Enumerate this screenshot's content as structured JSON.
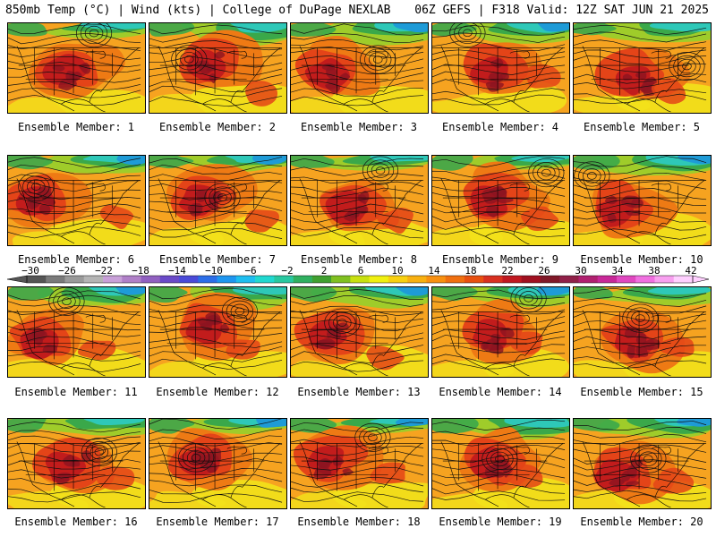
{
  "header": {
    "left": "850mb Temp (°C) | Wind (kts) | College of DuPage NEXLAB",
    "right": "06Z GEFS | F318 Valid: 12Z SAT JUN 21 2025"
  },
  "members": [
    {
      "label": "Ensemble Member: 1"
    },
    {
      "label": "Ensemble Member: 2"
    },
    {
      "label": "Ensemble Member: 3"
    },
    {
      "label": "Ensemble Member: 4"
    },
    {
      "label": "Ensemble Member: 5"
    },
    {
      "label": "Ensemble Member: 6"
    },
    {
      "label": "Ensemble Member: 7"
    },
    {
      "label": "Ensemble Member: 8"
    },
    {
      "label": "Ensemble Member: 9"
    },
    {
      "label": "Ensemble Member: 10"
    },
    {
      "label": "Ensemble Member: 11"
    },
    {
      "label": "Ensemble Member: 12"
    },
    {
      "label": "Ensemble Member: 13"
    },
    {
      "label": "Ensemble Member: 14"
    },
    {
      "label": "Ensemble Member: 15"
    },
    {
      "label": "Ensemble Member: 16"
    },
    {
      "label": "Ensemble Member: 17"
    },
    {
      "label": "Ensemble Member: 18"
    },
    {
      "label": "Ensemble Member: 19"
    },
    {
      "label": "Ensemble Member: 20"
    }
  ],
  "colorbar": {
    "labels": [
      "−30",
      "−26",
      "−22",
      "−18",
      "−14",
      "−10",
      "−6",
      "−2",
      "2",
      "6",
      "10",
      "14",
      "18",
      "22",
      "26",
      "30",
      "34",
      "38",
      "42"
    ],
    "colors": [
      "#555555",
      "#7a7a7a",
      "#9a9a9a",
      "#b4b4b4",
      "#c8a0d8",
      "#b080c8",
      "#9060c0",
      "#6a4ac8",
      "#4a4ad8",
      "#2c6ee8",
      "#1e96f0",
      "#1ebef0",
      "#20d8d0",
      "#28c8a0",
      "#30b060",
      "#40a030",
      "#80c020",
      "#c8e010",
      "#f0f010",
      "#f8d010",
      "#f8b010",
      "#f89010",
      "#f07010",
      "#e85010",
      "#d83020",
      "#c01820",
      "#a01020",
      "#801828",
      "#902048",
      "#b02070",
      "#c82898",
      "#e048c0",
      "#f070e0",
      "#f8a0f0",
      "#ffd0ff"
    ],
    "fill_levels": {
      "cold": "#1e9bd7",
      "cool": "#2ec8b8",
      "green": "#3aa84a",
      "lightgreen": "#9fcc2a",
      "yellow": "#f2e21a",
      "orange": "#f6a320",
      "darkorange": "#ee7a14",
      "red": "#e44418",
      "deepred": "#c21c1c",
      "maroon": "#8c1420"
    }
  }
}
